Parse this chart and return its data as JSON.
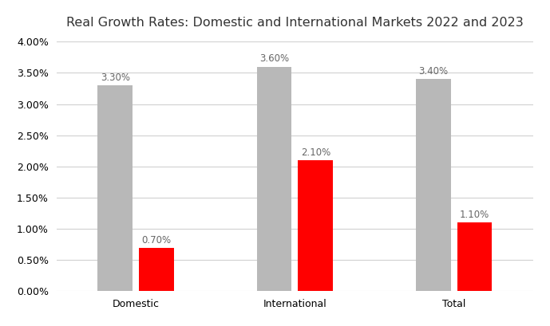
{
  "title": "Real Growth Rates: Domestic and International Markets 2022 and 2023",
  "categories": [
    "Domestic",
    "International",
    "Total"
  ],
  "values_2022": [
    3.3,
    3.6,
    3.4
  ],
  "values_2023": [
    0.7,
    2.1,
    1.1
  ],
  "labels_2022": [
    "3.30%",
    "3.60%",
    "3.40%"
  ],
  "labels_2023": [
    "0.70%",
    "2.10%",
    "1.10%"
  ],
  "color_2022": "#b8b8b8",
  "color_2023": "#ff0000",
  "ylim": [
    0,
    4.0
  ],
  "yticks": [
    0.0,
    0.5,
    1.0,
    1.5,
    2.0,
    2.5,
    3.0,
    3.5,
    4.0
  ],
  "bar_width": 0.22,
  "background_color": "#ffffff",
  "title_fontsize": 11.5,
  "label_fontsize": 8.5,
  "tick_fontsize": 9
}
